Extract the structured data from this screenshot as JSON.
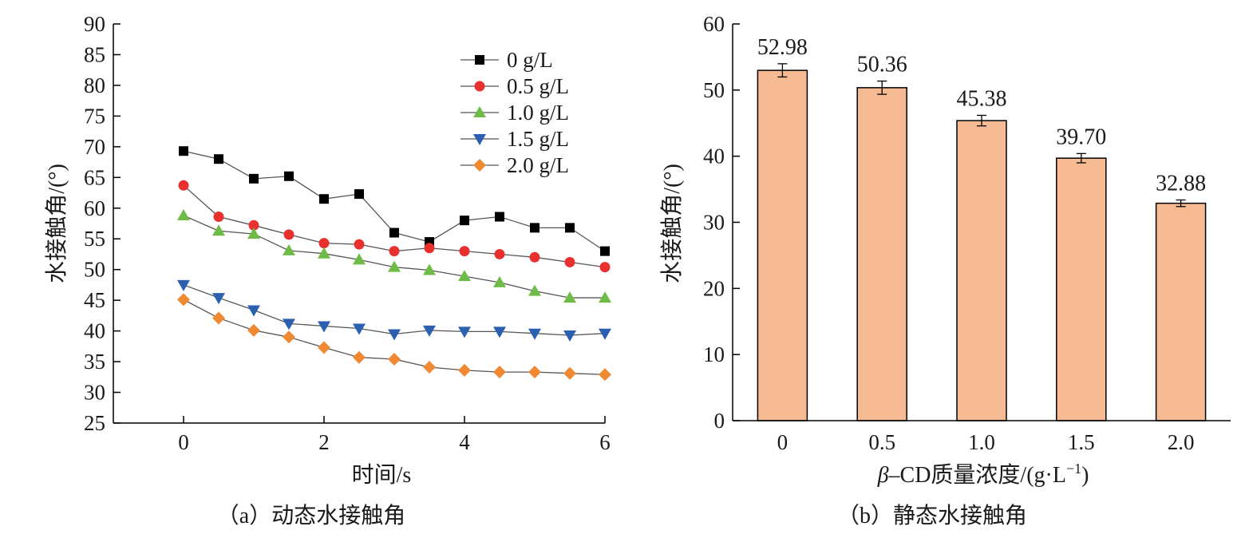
{
  "chart_data": [
    {
      "type": "line",
      "caption": "（a）动态水接触角",
      "xlabel": "时间/s",
      "ylabel": "水接触角/(°)",
      "xlim": [
        -1,
        6
      ],
      "ylim": [
        25,
        90
      ],
      "xticks": [
        0,
        2,
        4,
        6
      ],
      "yticks": [
        25,
        30,
        35,
        40,
        45,
        50,
        55,
        60,
        65,
        70,
        75,
        80,
        85,
        90
      ],
      "grid": false,
      "legend_position": "top-right",
      "x": [
        0,
        0.5,
        1,
        1.5,
        2,
        2.5,
        3,
        3.5,
        4,
        4.5,
        5,
        5.5,
        6
      ],
      "series": [
        {
          "name": "0 g/L",
          "marker": "square",
          "color": "#000000",
          "values": [
            69.3,
            68.0,
            64.8,
            65.2,
            61.5,
            62.3,
            56.0,
            54.5,
            58.0,
            58.6,
            56.8,
            56.8,
            53.0
          ]
        },
        {
          "name": "0.5 g/L",
          "marker": "circle",
          "color": "#e8302f",
          "values": [
            63.7,
            58.6,
            57.2,
            55.7,
            54.3,
            54.1,
            53.0,
            53.5,
            53.0,
            52.5,
            52.0,
            51.2,
            50.4
          ]
        },
        {
          "name": "1.0 g/L",
          "marker": "triangle-up",
          "color": "#6fbb47",
          "values": [
            58.8,
            56.3,
            55.8,
            53.1,
            52.6,
            51.6,
            50.4,
            49.9,
            48.9,
            47.9,
            46.5,
            45.4,
            45.4
          ]
        },
        {
          "name": "1.5 g/L",
          "marker": "triangle-down",
          "color": "#2b5fb0",
          "values": [
            47.5,
            45.4,
            43.4,
            41.2,
            40.8,
            40.4,
            39.5,
            40.1,
            39.9,
            39.9,
            39.6,
            39.3,
            39.6
          ]
        },
        {
          "name": "2.0 g/L",
          "marker": "diamond",
          "color": "#ef8a32",
          "values": [
            45.1,
            42.1,
            40.1,
            39.0,
            37.3,
            35.7,
            35.4,
            34.1,
            33.6,
            33.3,
            33.3,
            33.1,
            32.9
          ]
        }
      ]
    },
    {
      "type": "bar",
      "caption": "（b）静态水接触角",
      "xlabel_symbol": "β",
      "xlabel_main": "–CD质量浓度/(g·L",
      "xlabel_sup": "−1",
      "xlabel_close": ")",
      "ylabel": "水接触角/(°)",
      "ylim": [
        0,
        60
      ],
      "yticks": [
        0,
        10,
        20,
        30,
        40,
        50,
        60
      ],
      "grid": false,
      "bar_color": "#f7bb93",
      "categories": [
        "0",
        "0.5",
        "1.0",
        "1.5",
        "2.0"
      ],
      "values": [
        52.98,
        50.36,
        45.38,
        39.7,
        32.88
      ],
      "value_labels": [
        "52.98",
        "50.36",
        "45.38",
        "39.70",
        "32.88"
      ],
      "errors": [
        1.0,
        1.0,
        0.8,
        0.7,
        0.5
      ]
    }
  ]
}
